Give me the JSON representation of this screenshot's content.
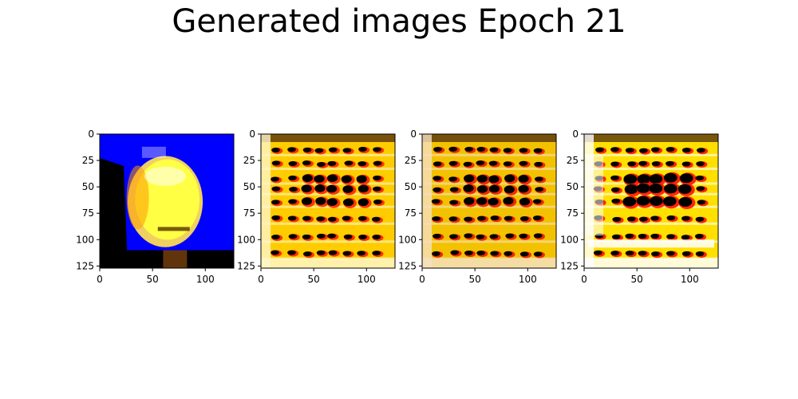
{
  "figure": {
    "title": "Generated images Epoch 21"
  },
  "chart_data": [
    {
      "type": "image",
      "description_colors": {
        "background": "#0000ff",
        "face": "#ffff44",
        "dark": "#000000",
        "accent": "#ff9900"
      },
      "pattern": "face",
      "xlim": [
        0,
        127
      ],
      "ylim": [
        127,
        0
      ],
      "xticks": [
        0,
        50,
        100
      ],
      "yticks": [
        0,
        25,
        50,
        75,
        100,
        125
      ],
      "xtick_labels": [
        "0",
        "50",
        "100"
      ],
      "ytick_labels": [
        "0",
        "25",
        "50",
        "75",
        "100",
        "125"
      ]
    },
    {
      "type": "image",
      "description_colors": {
        "background": "#ffcc00",
        "blob": "#000000",
        "accent": "#ff2200",
        "light": "#fff6c8"
      },
      "pattern": "grid",
      "xlim": [
        0,
        127
      ],
      "ylim": [
        127,
        0
      ],
      "xticks": [
        0,
        50,
        100
      ],
      "yticks": [
        0,
        25,
        50,
        75,
        100,
        125
      ],
      "xtick_labels": [
        "0",
        "50",
        "100"
      ],
      "ytick_labels": [
        "0",
        "25",
        "50",
        "75",
        "100",
        "125"
      ]
    },
    {
      "type": "image",
      "description_colors": {
        "background": "#f2c200",
        "blob": "#000000",
        "accent": "#ee1a00",
        "light": "#f5e0c0"
      },
      "pattern": "grid",
      "xlim": [
        0,
        127
      ],
      "ylim": [
        127,
        0
      ],
      "xticks": [
        0,
        50,
        100
      ],
      "yticks": [
        0,
        25,
        50,
        75,
        100,
        125
      ],
      "xtick_labels": [
        "0",
        "50",
        "100"
      ],
      "ytick_labels": [
        "0",
        "25",
        "50",
        "75",
        "100",
        "125"
      ]
    },
    {
      "type": "image",
      "description_colors": {
        "background": "#ffe000",
        "blob": "#000000",
        "accent": "#ff1100",
        "light": "#ffffff"
      },
      "pattern": "grid-sparse",
      "xlim": [
        0,
        127
      ],
      "ylim": [
        127,
        0
      ],
      "xticks": [
        0,
        50,
        100
      ],
      "yticks": [
        0,
        25,
        50,
        75,
        100,
        125
      ],
      "xtick_labels": [
        "0",
        "50",
        "100"
      ],
      "ytick_labels": [
        "0",
        "25",
        "50",
        "75",
        "100",
        "125"
      ]
    }
  ]
}
